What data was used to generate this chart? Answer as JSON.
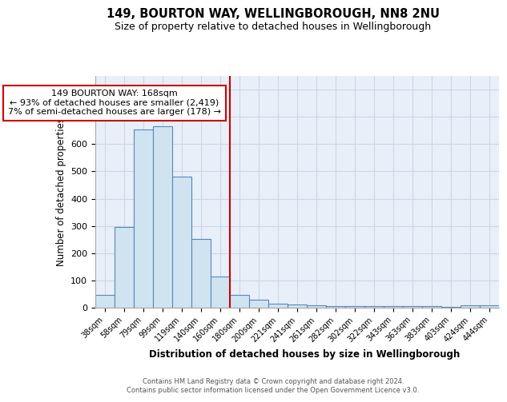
{
  "title": "149, BOURTON WAY, WELLINGBOROUGH, NN8 2NU",
  "subtitle": "Size of property relative to detached houses in Wellingborough",
  "xlabel": "Distribution of detached houses by size in Wellingborough",
  "ylabel": "Number of detached properties",
  "bar_labels": [
    "38sqm",
    "58sqm",
    "79sqm",
    "99sqm",
    "119sqm",
    "140sqm",
    "160sqm",
    "180sqm",
    "200sqm",
    "221sqm",
    "241sqm",
    "261sqm",
    "282sqm",
    "302sqm",
    "322sqm",
    "343sqm",
    "363sqm",
    "383sqm",
    "403sqm",
    "424sqm",
    "444sqm"
  ],
  "bar_values": [
    48,
    295,
    653,
    665,
    480,
    253,
    113,
    48,
    28,
    15,
    13,
    8,
    5,
    5,
    5,
    5,
    5,
    5,
    4,
    8,
    8
  ],
  "bar_color": "#d0e3f0",
  "bar_edgecolor": "#5588bb",
  "bar_linewidth": 0.8,
  "vline_x_idx": 7,
  "vline_color": "#cc0000",
  "ann_line1": "149 BOURTON WAY: 168sqm",
  "ann_line2": "← 93% of detached houses are smaller (2,419)",
  "ann_line3": "7% of semi-detached houses are larger (178) →",
  "annotation_box_edgecolor": "#cc0000",
  "ylim": [
    0,
    850
  ],
  "yticks": [
    0,
    100,
    200,
    300,
    400,
    500,
    600,
    700,
    800
  ],
  "grid_color": "#c8d8e8",
  "bg_color": "#e8eff8",
  "footer1": "Contains HM Land Registry data © Crown copyright and database right 2024.",
  "footer2": "Contains public sector information licensed under the Open Government Licence v3.0.",
  "title_fontsize": 10.5,
  "subtitle_fontsize": 9
}
